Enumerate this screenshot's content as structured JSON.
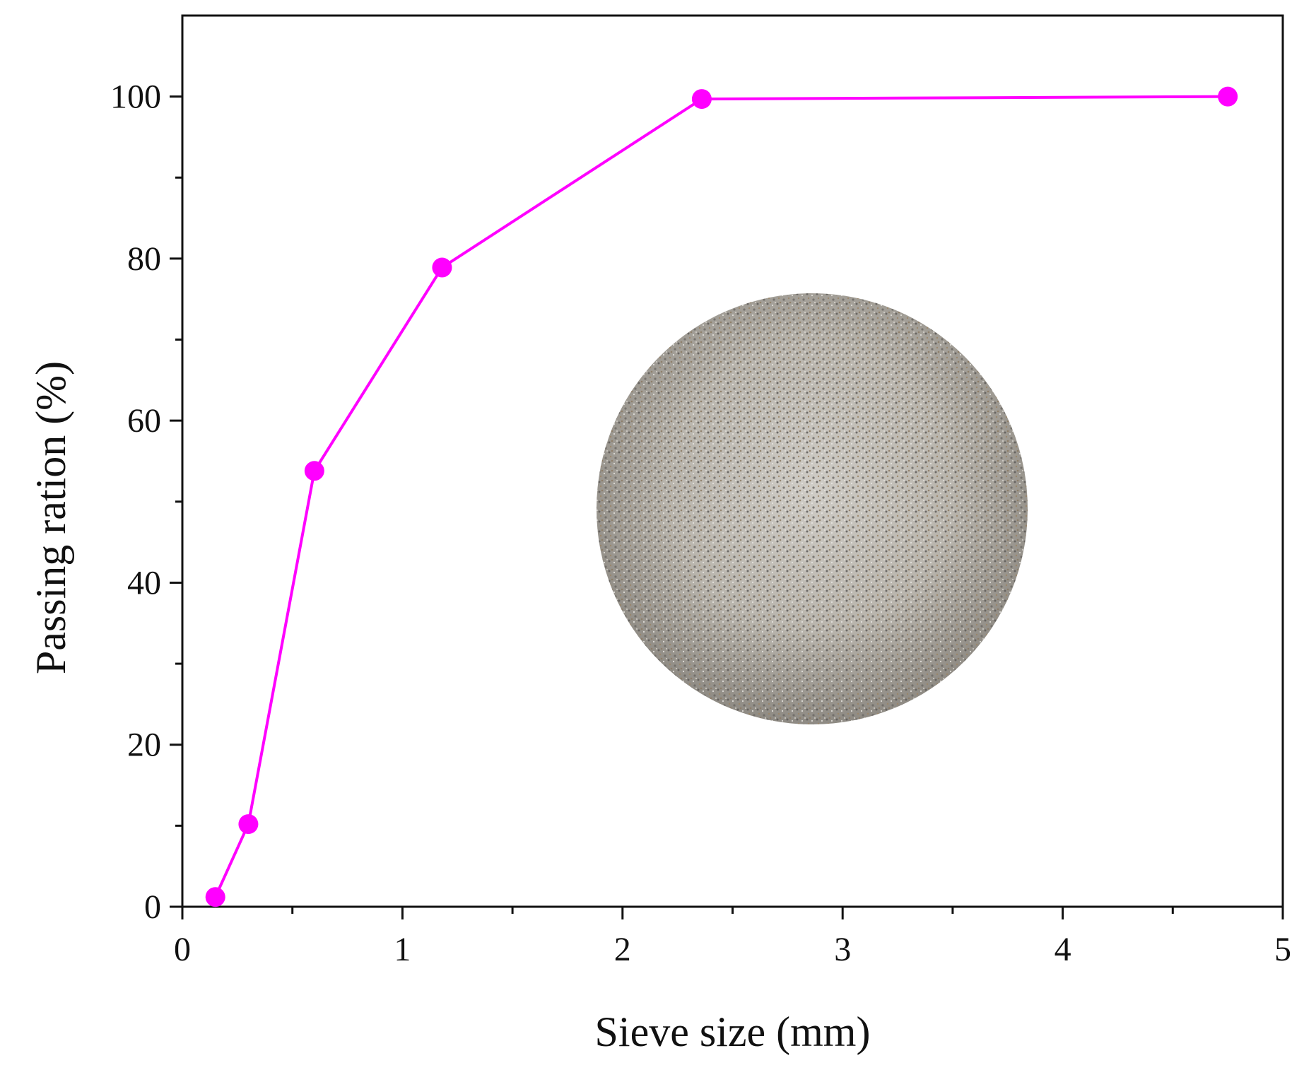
{
  "chart_data": {
    "type": "line",
    "title": "",
    "xlabel": "Sieve size (mm)",
    "ylabel": "Passing ration (%)",
    "xlim": [
      0,
      5
    ],
    "ylim": [
      0,
      110
    ],
    "x_ticks": [
      0,
      1,
      2,
      3,
      4,
      5
    ],
    "x_tick_labels": [
      "0",
      "1",
      "2",
      "3",
      "4",
      "5"
    ],
    "x_minor_step": 0.5,
    "y_ticks": [
      0,
      20,
      40,
      60,
      80,
      100
    ],
    "y_tick_labels": [
      "0",
      "20",
      "40",
      "60",
      "80",
      "100"
    ],
    "y_minor_step": 10,
    "grid": false,
    "legend": "none",
    "series": [
      {
        "color": "#ff00ff",
        "marker": "circle",
        "x": [
          0.15,
          0.3,
          0.6,
          1.18,
          2.36,
          4.75
        ],
        "y": [
          1.2,
          10.2,
          53.8,
          78.9,
          99.7,
          100
        ]
      }
    ],
    "inset_image": "circular sand sample photo"
  }
}
